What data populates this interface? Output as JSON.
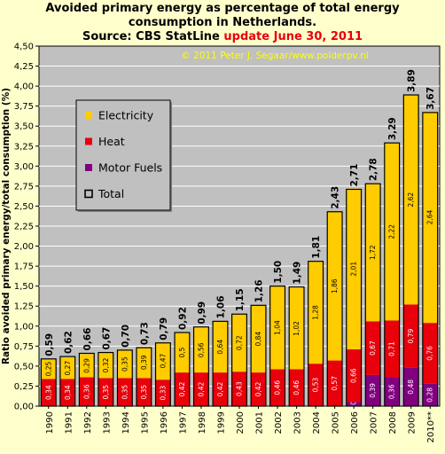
{
  "title": {
    "line1": "Avoided primary energy as percentage of total energy",
    "line2": "consumption in Netherlands.",
    "line3a": "Source: CBS StatLine ",
    "line3b": "update June 30, 2011"
  },
  "watermark": "© 2011 Peter J. Segaar/www.polderpv.nl",
  "colors": {
    "electricity": "#ffcc00",
    "heat": "#e8000b",
    "motor_fuels": "#800080",
    "plot_bg": "#c0c0c0",
    "page_bg": "#ffffcc",
    "watermark": "#ffff00"
  },
  "chart_data": {
    "type": "bar",
    "stacked": true,
    "ylabel": "Ratio avoided primary energy/total consumption (%)",
    "xlabel": "",
    "ylim": [
      0,
      4.5
    ],
    "ytick_step": 0.25,
    "grid": true,
    "legend_position": "upper-left",
    "categories": [
      "1990",
      "1991",
      "1992",
      "1993",
      "1994",
      "1995",
      "1996",
      "1997",
      "1998",
      "1999",
      "2000",
      "2001",
      "2002",
      "2003",
      "2004",
      "2005",
      "2006",
      "2007",
      "2008",
      "2009",
      "2010**"
    ],
    "series": [
      {
        "name": "Electricity",
        "key": "electricity",
        "values": [
          0.25,
          0.27,
          0.29,
          0.32,
          0.35,
          0.39,
          0.47,
          0.5,
          0.56,
          0.64,
          0.72,
          0.84,
          1.04,
          1.02,
          1.28,
          1.86,
          2.01,
          1.72,
          2.22,
          2.62,
          2.64
        ],
        "labels": [
          "0,25",
          "0,27",
          "0,29",
          "0,32",
          "0,35",
          "0,39",
          "0,47",
          "0,5",
          "0,56",
          "0,64",
          "0,72",
          "0,84",
          "1,04",
          "1,02",
          "1,28",
          "1,86",
          "2,01",
          "1,72",
          "2,22",
          "2,62",
          "2,64"
        ]
      },
      {
        "name": "Heat",
        "key": "heat",
        "values": [
          0.34,
          0.34,
          0.36,
          0.35,
          0.35,
          0.35,
          0.33,
          0.42,
          0.42,
          0.42,
          0.43,
          0.42,
          0.46,
          0.46,
          0.53,
          0.57,
          0.66,
          0.67,
          0.71,
          0.79,
          0.76
        ],
        "labels": [
          "0,34",
          "0,34",
          "0,36",
          "0,35",
          "0,35",
          "0,35",
          "0,33",
          "0,42",
          "0,42",
          "0,42",
          "0,43",
          "0,42",
          "0,46",
          "0,46",
          "0,53",
          "0,57",
          "0,66",
          "0,67",
          "0,71",
          "0,79",
          "0,76"
        ]
      },
      {
        "name": "Motor Fuels",
        "key": "motor_fuels",
        "values": [
          0,
          0,
          0,
          0,
          0,
          0,
          0,
          0,
          0,
          0,
          0,
          0,
          0,
          0,
          0,
          0,
          0.05,
          0.39,
          0.36,
          0.48,
          0.28
        ],
        "labels": [
          "",
          "",
          "",
          "",
          "",
          "",
          "",
          "",
          "",
          "",
          "",
          "",
          "",
          "",
          "",
          "",
          "0,05",
          "0,39",
          "0,36",
          "0,48",
          "0,28"
        ]
      }
    ],
    "totals": {
      "name": "Total",
      "values": [
        0.59,
        0.62,
        0.66,
        0.67,
        0.7,
        0.73,
        0.79,
        0.92,
        0.99,
        1.06,
        1.15,
        1.26,
        1.5,
        1.49,
        1.81,
        2.43,
        2.71,
        2.78,
        3.29,
        3.89,
        3.67
      ],
      "labels": [
        "0,59",
        "0,62",
        "0,66",
        "0,67",
        "0,70",
        "0,73",
        "0,79",
        "0,92",
        "0,99",
        "1,06",
        "1,15",
        "1,26",
        "1,50",
        "1,49",
        "1,81",
        "2,43",
        "2,71",
        "2,78",
        "3,29",
        "3,89",
        "3,67"
      ]
    }
  }
}
